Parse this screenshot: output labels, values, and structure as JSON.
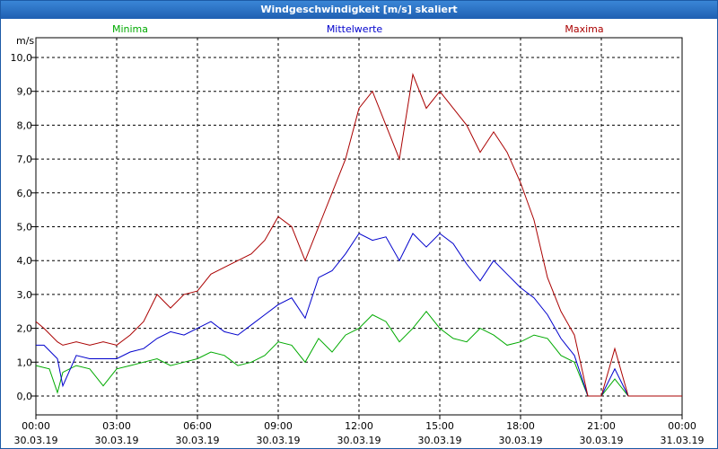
{
  "window": {
    "title": "Windgeschwindigkeit [m/s] skaliert"
  },
  "chart_data": {
    "type": "line",
    "title": "Windgeschwindigkeit [m/s] skaliert",
    "ylabel": "m/s",
    "ylim": [
      0,
      10.6
    ],
    "y_ticks": [
      "0,0",
      "1,0",
      "2,0",
      "3,0",
      "4,0",
      "5,0",
      "6,0",
      "7,0",
      "8,0",
      "9,0",
      "10,0"
    ],
    "xlim": [
      0,
      24
    ],
    "x_ticks": [
      {
        "time": "00:00",
        "date": "30.03.19"
      },
      {
        "time": "03:00",
        "date": "30.03.19"
      },
      {
        "time": "06:00",
        "date": "30.03.19"
      },
      {
        "time": "09:00",
        "date": "30.03.19"
      },
      {
        "time": "12:00",
        "date": "30.03.19"
      },
      {
        "time": "15:00",
        "date": "30.03.19"
      },
      {
        "time": "18:00",
        "date": "30.03.19"
      },
      {
        "time": "21:00",
        "date": "30.03.19"
      },
      {
        "time": "00:00",
        "date": "31.03.19"
      }
    ],
    "grid": true,
    "series": [
      {
        "name": "Minima",
        "color": "#00aa00",
        "x": [
          0,
          0.5,
          0.8,
          1.0,
          1.5,
          2.0,
          2.5,
          3.0,
          3.5,
          4.0,
          4.5,
          5.0,
          5.5,
          6.0,
          6.5,
          7.0,
          7.5,
          8.0,
          8.5,
          9.0,
          9.5,
          10.0,
          10.5,
          11.0,
          11.5,
          12.0,
          12.5,
          13.0,
          13.5,
          14.0,
          14.5,
          15.0,
          15.5,
          16.0,
          16.5,
          17.0,
          17.5,
          18.0,
          18.5,
          19.0,
          19.5,
          20.0,
          20.5,
          21.0,
          21.5,
          22.0,
          22.5,
          23.0,
          23.5,
          24.0
        ],
        "y": [
          0.9,
          0.8,
          0.1,
          0.7,
          0.9,
          0.8,
          0.3,
          0.8,
          0.9,
          1.0,
          1.1,
          0.9,
          1.0,
          1.1,
          1.3,
          1.2,
          0.9,
          1.0,
          1.2,
          1.6,
          1.5,
          1.0,
          1.7,
          1.3,
          1.8,
          2.0,
          2.4,
          2.2,
          1.6,
          2.0,
          2.5,
          2.0,
          1.7,
          1.6,
          2.0,
          1.8,
          1.5,
          1.6,
          1.8,
          1.7,
          1.2,
          1.0,
          0.0,
          0.0,
          0.5,
          0.0,
          0.0,
          0.0,
          0.0,
          0.0
        ]
      },
      {
        "name": "Mittelwerte",
        "color": "#0000cc",
        "x": [
          0,
          0.3,
          0.8,
          1.0,
          1.5,
          2.0,
          2.5,
          3.0,
          3.5,
          4.0,
          4.5,
          5.0,
          5.5,
          6.0,
          6.5,
          7.0,
          7.5,
          8.0,
          8.5,
          9.0,
          9.5,
          10.0,
          10.5,
          11.0,
          11.5,
          12.0,
          12.5,
          13.0,
          13.5,
          14.0,
          14.5,
          15.0,
          15.5,
          16.0,
          16.5,
          17.0,
          17.5,
          18.0,
          18.5,
          19.0,
          19.5,
          20.0,
          20.5,
          21.0,
          21.5,
          22.0,
          22.5,
          23.0,
          23.5,
          24.0
        ],
        "y": [
          1.5,
          1.5,
          1.1,
          0.3,
          1.2,
          1.1,
          1.1,
          1.1,
          1.3,
          1.4,
          1.7,
          1.9,
          1.8,
          2.0,
          2.2,
          1.9,
          1.8,
          2.1,
          2.4,
          2.7,
          2.9,
          2.3,
          3.5,
          3.7,
          4.2,
          4.8,
          4.6,
          4.7,
          4.0,
          4.8,
          4.4,
          4.8,
          4.5,
          3.9,
          3.4,
          4.0,
          3.6,
          3.2,
          2.9,
          2.4,
          1.7,
          1.2,
          0.0,
          0.0,
          0.8,
          0.0,
          0.0,
          0.0,
          0.0,
          0.0
        ]
      },
      {
        "name": "Maxima",
        "color": "#aa0000",
        "x": [
          0,
          0.3,
          0.8,
          1.0,
          1.5,
          2.0,
          2.5,
          3.0,
          3.5,
          4.0,
          4.5,
          5.0,
          5.5,
          6.0,
          6.5,
          7.0,
          7.5,
          8.0,
          8.5,
          9.0,
          9.5,
          10.0,
          10.5,
          11.0,
          11.5,
          12.0,
          12.5,
          13.0,
          13.5,
          14.0,
          14.5,
          15.0,
          15.5,
          16.0,
          16.5,
          17.0,
          17.5,
          18.0,
          18.5,
          19.0,
          19.5,
          20.0,
          20.5,
          21.0,
          21.5,
          22.0,
          22.5,
          23.0,
          23.5,
          24.0
        ],
        "y": [
          2.2,
          2.0,
          1.6,
          1.5,
          1.6,
          1.5,
          1.6,
          1.5,
          1.8,
          2.2,
          3.0,
          2.6,
          3.0,
          3.1,
          3.6,
          3.8,
          4.0,
          4.2,
          4.6,
          5.3,
          5.0,
          4.0,
          5.0,
          6.0,
          7.0,
          8.5,
          9.0,
          8.0,
          7.0,
          9.5,
          8.5,
          9.0,
          8.5,
          8.0,
          7.2,
          7.8,
          7.2,
          6.3,
          5.2,
          3.5,
          2.5,
          1.8,
          0.0,
          0.0,
          1.4,
          0.0,
          0.0,
          0.0,
          0.0,
          0.0
        ]
      }
    ]
  }
}
